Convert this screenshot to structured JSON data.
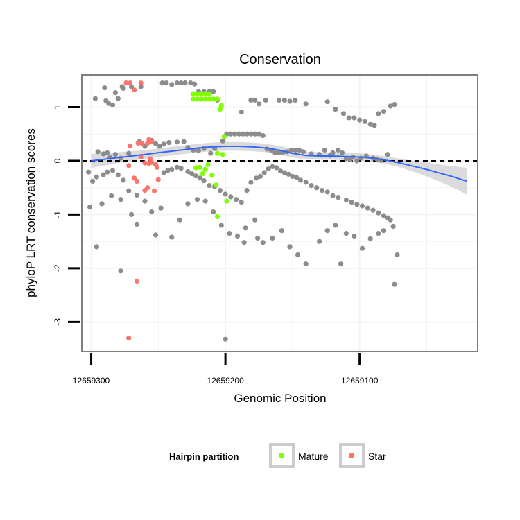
{
  "chart_data": {
    "type": "scatter",
    "title": "Conservation",
    "xlabel": "Genomic Position",
    "ylabel": "phyloP LRT conservation scores",
    "x_reversed": true,
    "xlim": [
      12659307,
      12659012
    ],
    "ylim": [
      -3.55,
      1.6
    ],
    "x_ticks": [
      12659300,
      12659200,
      12659100
    ],
    "x_tick_labels": [
      "12659300",
      "12659200",
      "12659100"
    ],
    "y_ticks": [
      -3,
      -2,
      -1,
      0,
      1
    ],
    "y_tick_labels": [
      "-3",
      "-2",
      "-1",
      "0",
      "1"
    ],
    "grid": true,
    "reference_line": {
      "y": 0,
      "style": "dashed"
    },
    "legend": {
      "title": "Hairpin partition",
      "placement": "bottom",
      "entries": [
        {
          "label": "Mature",
          "color": "#7fff00"
        },
        {
          "label": "Star",
          "color": "#f8766d"
        }
      ]
    },
    "colors": {
      "other": "#8c8c8c",
      "mature": "#7fff00",
      "star": "#f8766d",
      "smooth_line": "#3366ff",
      "ribbon": "#bdbdbd",
      "panel_border": "#7f7f7f",
      "grid": "#f2f2f2"
    },
    "smooth": {
      "x": [
        12659300,
        12659290,
        12659280,
        12659270,
        12659260,
        12659250,
        12659240,
        12659230,
        12659220,
        12659210,
        12659200,
        12659190,
        12659180,
        12659170,
        12659160,
        12659150,
        12659140,
        12659130,
        12659120,
        12659110,
        12659100,
        12659090,
        12659080,
        12659070,
        12659060,
        12659050,
        12659040,
        12659030,
        12659020
      ],
      "y": [
        0.0,
        0.03,
        0.06,
        0.09,
        0.12,
        0.15,
        0.18,
        0.21,
        0.24,
        0.26,
        0.27,
        0.27,
        0.26,
        0.24,
        0.2,
        0.14,
        0.1,
        0.09,
        0.09,
        0.08,
        0.07,
        0.05,
        0.01,
        -0.04,
        -0.1,
        -0.16,
        -0.23,
        -0.3,
        -0.38
      ],
      "se": [
        0.13,
        0.12,
        0.1,
        0.09,
        0.08,
        0.08,
        0.08,
        0.08,
        0.08,
        0.08,
        0.08,
        0.08,
        0.08,
        0.08,
        0.08,
        0.08,
        0.07,
        0.07,
        0.07,
        0.07,
        0.07,
        0.07,
        0.07,
        0.08,
        0.1,
        0.13,
        0.16,
        0.2,
        0.25
      ]
    },
    "series": [
      {
        "name": "Mature",
        "group": "mature",
        "points": [
          [
            12659224,
            1.25
          ],
          [
            12659221,
            1.25
          ],
          [
            12659218,
            1.25
          ],
          [
            12659215,
            1.25
          ],
          [
            12659212,
            1.25
          ],
          [
            12659224,
            1.15
          ],
          [
            12659221,
            1.15
          ],
          [
            12659218,
            1.15
          ],
          [
            12659215,
            1.15
          ],
          [
            12659212,
            1.15
          ],
          [
            12659209,
            1.15
          ],
          [
            12659206,
            1.15
          ],
          [
            12659203,
            1.03
          ],
          [
            12659204,
            0.96
          ],
          [
            12659201,
            0.45
          ],
          [
            12659202,
            0.12
          ],
          [
            12659206,
            0.14
          ],
          [
            12659213,
            -0.07
          ],
          [
            12659215,
            -0.16
          ],
          [
            12659217,
            -0.24
          ],
          [
            12659219,
            -0.12
          ],
          [
            12659222,
            -0.13
          ],
          [
            12659210,
            -0.27
          ],
          [
            12659207,
            -0.45
          ],
          [
            12659206,
            -1.04
          ],
          [
            12659199,
            -0.75
          ]
        ]
      },
      {
        "name": "Star",
        "group": "star",
        "points": [
          [
            12659274,
            1.45
          ],
          [
            12659271,
            1.45
          ],
          [
            12659268,
            1.32
          ],
          [
            12659263,
            1.45
          ],
          [
            12659271,
            0.28
          ],
          [
            12659265,
            0.33
          ],
          [
            12659258,
            0.33
          ],
          [
            12659255,
            0.36
          ],
          [
            12659257,
            0.4
          ],
          [
            12659262,
            0.32
          ],
          [
            12659263,
            0.07
          ],
          [
            12659260,
            -0.04
          ],
          [
            12659257,
            -0.05
          ],
          [
            12659255,
            -0.03
          ],
          [
            12659252,
            -0.07
          ],
          [
            12659251,
            -0.12
          ],
          [
            12659256,
            0.04
          ],
          [
            12659272,
            -0.09
          ],
          [
            12659266,
            -0.38
          ],
          [
            12659268,
            -0.32
          ],
          [
            12659260,
            -0.55
          ],
          [
            12659258,
            -0.5
          ],
          [
            12659253,
            -0.56
          ],
          [
            12659250,
            -0.35
          ],
          [
            12659266,
            -2.24
          ],
          [
            12659272,
            -3.3
          ]
        ]
      },
      {
        "name": "",
        "group": "other",
        "points": [
          [
            12659297,
            1.16
          ],
          [
            12659289,
            1.12
          ],
          [
            12659287,
            1.07
          ],
          [
            12659284,
            1.04
          ],
          [
            12659280,
            1.16
          ],
          [
            12659276,
            1.35
          ],
          [
            12659282,
            1.27
          ],
          [
            12659290,
            1.36
          ],
          [
            12659277,
            1.38
          ],
          [
            12659270,
            1.38
          ],
          [
            12659263,
            1.38
          ],
          [
            12659247,
            1.45
          ],
          [
            12659244,
            1.45
          ],
          [
            12659240,
            1.42
          ],
          [
            12659236,
            1.45
          ],
          [
            12659233,
            1.45
          ],
          [
            12659230,
            1.45
          ],
          [
            12659226,
            1.45
          ],
          [
            12659223,
            1.43
          ],
          [
            12659220,
            1.29
          ],
          [
            12659216,
            1.29
          ],
          [
            12659212,
            1.29
          ],
          [
            12659209,
            1.29
          ],
          [
            12659206,
            1.13
          ],
          [
            12659188,
            0.91
          ],
          [
            12659181,
            1.13
          ],
          [
            12659178,
            1.13
          ],
          [
            12659175,
            1.06
          ],
          [
            12659170,
            1.13
          ],
          [
            12659160,
            1.13
          ],
          [
            12659156,
            1.13
          ],
          [
            12659152,
            1.11
          ],
          [
            12659148,
            1.13
          ],
          [
            12659140,
            1.06
          ],
          [
            12659124,
            1.1
          ],
          [
            12659118,
            0.96
          ],
          [
            12659112,
            0.88
          ],
          [
            12659108,
            0.8
          ],
          [
            12659104,
            0.8
          ],
          [
            12659100,
            0.76
          ],
          [
            12659096,
            0.73
          ],
          [
            12659092,
            0.68
          ],
          [
            12659089,
            0.66
          ],
          [
            12659086,
            0.88
          ],
          [
            12659082,
            0.92
          ],
          [
            12659077,
            1.02
          ],
          [
            12659074,
            1.05
          ],
          [
            12659295,
            0.17
          ],
          [
            12659291,
            0.13
          ],
          [
            12659288,
            0.15
          ],
          [
            12659286,
            0.06
          ],
          [
            12659282,
            0.12
          ],
          [
            12659278,
            0.05
          ],
          [
            12659272,
            0.14
          ],
          [
            12659264,
            0.36
          ],
          [
            12659260,
            0.27
          ],
          [
            12659255,
            0.38
          ],
          [
            12659252,
            0.32
          ],
          [
            12659249,
            0.27
          ],
          [
            12659246,
            0.31
          ],
          [
            12659242,
            0.34
          ],
          [
            12659236,
            0.35
          ],
          [
            12659231,
            0.36
          ],
          [
            12659228,
            0.25
          ],
          [
            12659224,
            0.2
          ],
          [
            12659220,
            0.19
          ],
          [
            12659216,
            0.23
          ],
          [
            12659211,
            0.14
          ],
          [
            12659208,
            0.23
          ],
          [
            12659202,
            0.37
          ],
          [
            12659199,
            0.5
          ],
          [
            12659196,
            0.5
          ],
          [
            12659193,
            0.5
          ],
          [
            12659190,
            0.5
          ],
          [
            12659187,
            0.5
          ],
          [
            12659184,
            0.5
          ],
          [
            12659181,
            0.5
          ],
          [
            12659178,
            0.5
          ],
          [
            12659175,
            0.5
          ],
          [
            12659172,
            0.47
          ],
          [
            12659169,
            0.22
          ],
          [
            12659166,
            0.2
          ],
          [
            12659163,
            0.15
          ],
          [
            12659160,
            0.15
          ],
          [
            12659157,
            0.16
          ],
          [
            12659154,
            0.17
          ],
          [
            12659151,
            0.2
          ],
          [
            12659148,
            0.2
          ],
          [
            12659145,
            0.2
          ],
          [
            12659142,
            0.17
          ],
          [
            12659136,
            0.13
          ],
          [
            12659130,
            0.12
          ],
          [
            12659126,
            0.2
          ],
          [
            12659122,
            0.1
          ],
          [
            12659120,
            0.15
          ],
          [
            12659116,
            0.2
          ],
          [
            12659113,
            0.15
          ],
          [
            12659110,
            0.04
          ],
          [
            12659107,
            0.02
          ],
          [
            12659105,
            0.07
          ],
          [
            12659102,
            0.0
          ],
          [
            12659099,
            0.05
          ],
          [
            12659095,
            0.09
          ],
          [
            12659090,
            0.05
          ],
          [
            12659087,
            0.03
          ],
          [
            12659084,
            0.01
          ],
          [
            12659079,
            0.12
          ],
          [
            12659302,
            -0.21
          ],
          [
            12659299,
            -0.38
          ],
          [
            12659296,
            -0.3
          ],
          [
            12659291,
            -0.26
          ],
          [
            12659288,
            -0.21
          ],
          [
            12659284,
            -0.18
          ],
          [
            12659280,
            -0.26
          ],
          [
            12659276,
            -0.36
          ],
          [
            12659272,
            -0.56
          ],
          [
            12659266,
            -0.64
          ],
          [
            12659260,
            -0.75
          ],
          [
            12659255,
            -0.95
          ],
          [
            12659246,
            -0.22
          ],
          [
            12659243,
            -0.18
          ],
          [
            12659240,
            -0.16
          ],
          [
            12659236,
            -0.12
          ],
          [
            12659233,
            -0.14
          ],
          [
            12659228,
            -0.2
          ],
          [
            12659225,
            -0.24
          ],
          [
            12659222,
            -0.28
          ],
          [
            12659219,
            -0.32
          ],
          [
            12659216,
            -0.37
          ],
          [
            12659212,
            -0.46
          ],
          [
            12659208,
            -0.48
          ],
          [
            12659204,
            -0.55
          ],
          [
            12659200,
            -0.62
          ],
          [
            12659196,
            -0.67
          ],
          [
            12659192,
            -0.72
          ],
          [
            12659188,
            -0.77
          ],
          [
            12659184,
            -0.55
          ],
          [
            12659181,
            -0.4
          ],
          [
            12659177,
            -0.32
          ],
          [
            12659174,
            -0.29
          ],
          [
            12659171,
            -0.22
          ],
          [
            12659168,
            -0.15
          ],
          [
            12659165,
            -0.11
          ],
          [
            12659162,
            -0.13
          ],
          [
            12659159,
            -0.19
          ],
          [
            12659156,
            -0.22
          ],
          [
            12659153,
            -0.25
          ],
          [
            12659150,
            -0.29
          ],
          [
            12659147,
            -0.31
          ],
          [
            12659144,
            -0.36
          ],
          [
            12659140,
            -0.4
          ],
          [
            12659136,
            -0.46
          ],
          [
            12659132,
            -0.5
          ],
          [
            12659128,
            -0.55
          ],
          [
            12659124,
            -0.58
          ],
          [
            12659120,
            -0.65
          ],
          [
            12659116,
            -0.68
          ],
          [
            12659110,
            -0.73
          ],
          [
            12659106,
            -0.77
          ],
          [
            12659102,
            -0.81
          ],
          [
            12659098,
            -0.84
          ],
          [
            12659094,
            -0.88
          ],
          [
            12659090,
            -0.92
          ],
          [
            12659086,
            -0.97
          ],
          [
            12659082,
            -1.02
          ],
          [
            12659079,
            -1.06
          ],
          [
            12659301,
            -0.86
          ],
          [
            12659292,
            -0.8
          ],
          [
            12659285,
            -0.65
          ],
          [
            12659278,
            -0.72
          ],
          [
            12659270,
            -1.0
          ],
          [
            12659266,
            -1.18
          ],
          [
            12659252,
            -1.38
          ],
          [
            12659248,
            -0.88
          ],
          [
            12659240,
            -1.42
          ],
          [
            12659234,
            -1.1
          ],
          [
            12659228,
            -0.8
          ],
          [
            12659221,
            -0.72
          ],
          [
            12659215,
            -0.75
          ],
          [
            12659209,
            -0.95
          ],
          [
            12659203,
            -1.2
          ],
          [
            12659197,
            -1.35
          ],
          [
            12659191,
            -1.4
          ],
          [
            12659185,
            -1.25
          ],
          [
            12659178,
            -1.1
          ],
          [
            12659172,
            -1.52
          ],
          [
            12659165,
            -1.44
          ],
          [
            12659158,
            -1.3
          ],
          [
            12659152,
            -1.6
          ],
          [
            12659146,
            -1.75
          ],
          [
            12659140,
            -1.92
          ],
          [
            12659130,
            -1.5
          ],
          [
            12659124,
            -1.3
          ],
          [
            12659118,
            -1.2
          ],
          [
            12659110,
            -1.35
          ],
          [
            12659104,
            -1.4
          ],
          [
            12659098,
            -1.63
          ],
          [
            12659092,
            -1.45
          ],
          [
            12659086,
            -1.35
          ],
          [
            12659082,
            -1.3
          ],
          [
            12659077,
            -1.1
          ],
          [
            12659075,
            -1.22
          ],
          [
            12659072,
            -1.75
          ],
          [
            12659074,
            -2.3
          ],
          [
            12659296,
            -1.6
          ],
          [
            12659278,
            -2.05
          ],
          [
            12659200,
            -3.32
          ],
          [
            12659186,
            -1.52
          ],
          [
            12659176,
            -1.44
          ],
          [
            12659114,
            -1.92
          ]
        ]
      }
    ]
  }
}
